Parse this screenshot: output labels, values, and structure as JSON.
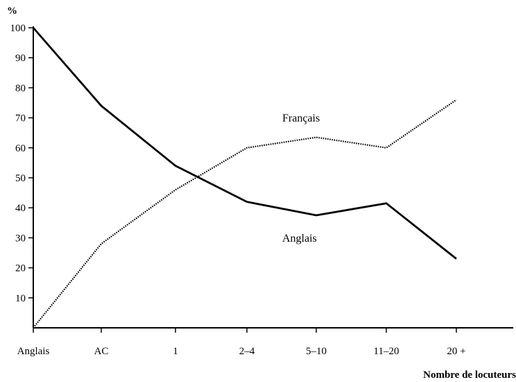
{
  "chart_data": {
    "type": "line",
    "ylabel": "%",
    "xlabel": "Nombre de locuteurs",
    "categories": [
      "Anglais",
      "AC",
      "1",
      "2–4",
      "5–10",
      "11–20",
      "20 +"
    ],
    "y_ticks": [
      10,
      20,
      30,
      40,
      50,
      60,
      70,
      80,
      90,
      100
    ],
    "ylim": [
      0,
      100
    ],
    "grid": false,
    "legend": "none",
    "series": [
      {
        "name": "Anglais",
        "style": "solid",
        "color": "#000000",
        "values": [
          100,
          74,
          54,
          42,
          37.5,
          41.5,
          23
        ]
      },
      {
        "name": "Français",
        "style": "dotted",
        "color": "#000000",
        "values": [
          0,
          28,
          46,
          60,
          63.5,
          60,
          76
        ]
      }
    ]
  }
}
